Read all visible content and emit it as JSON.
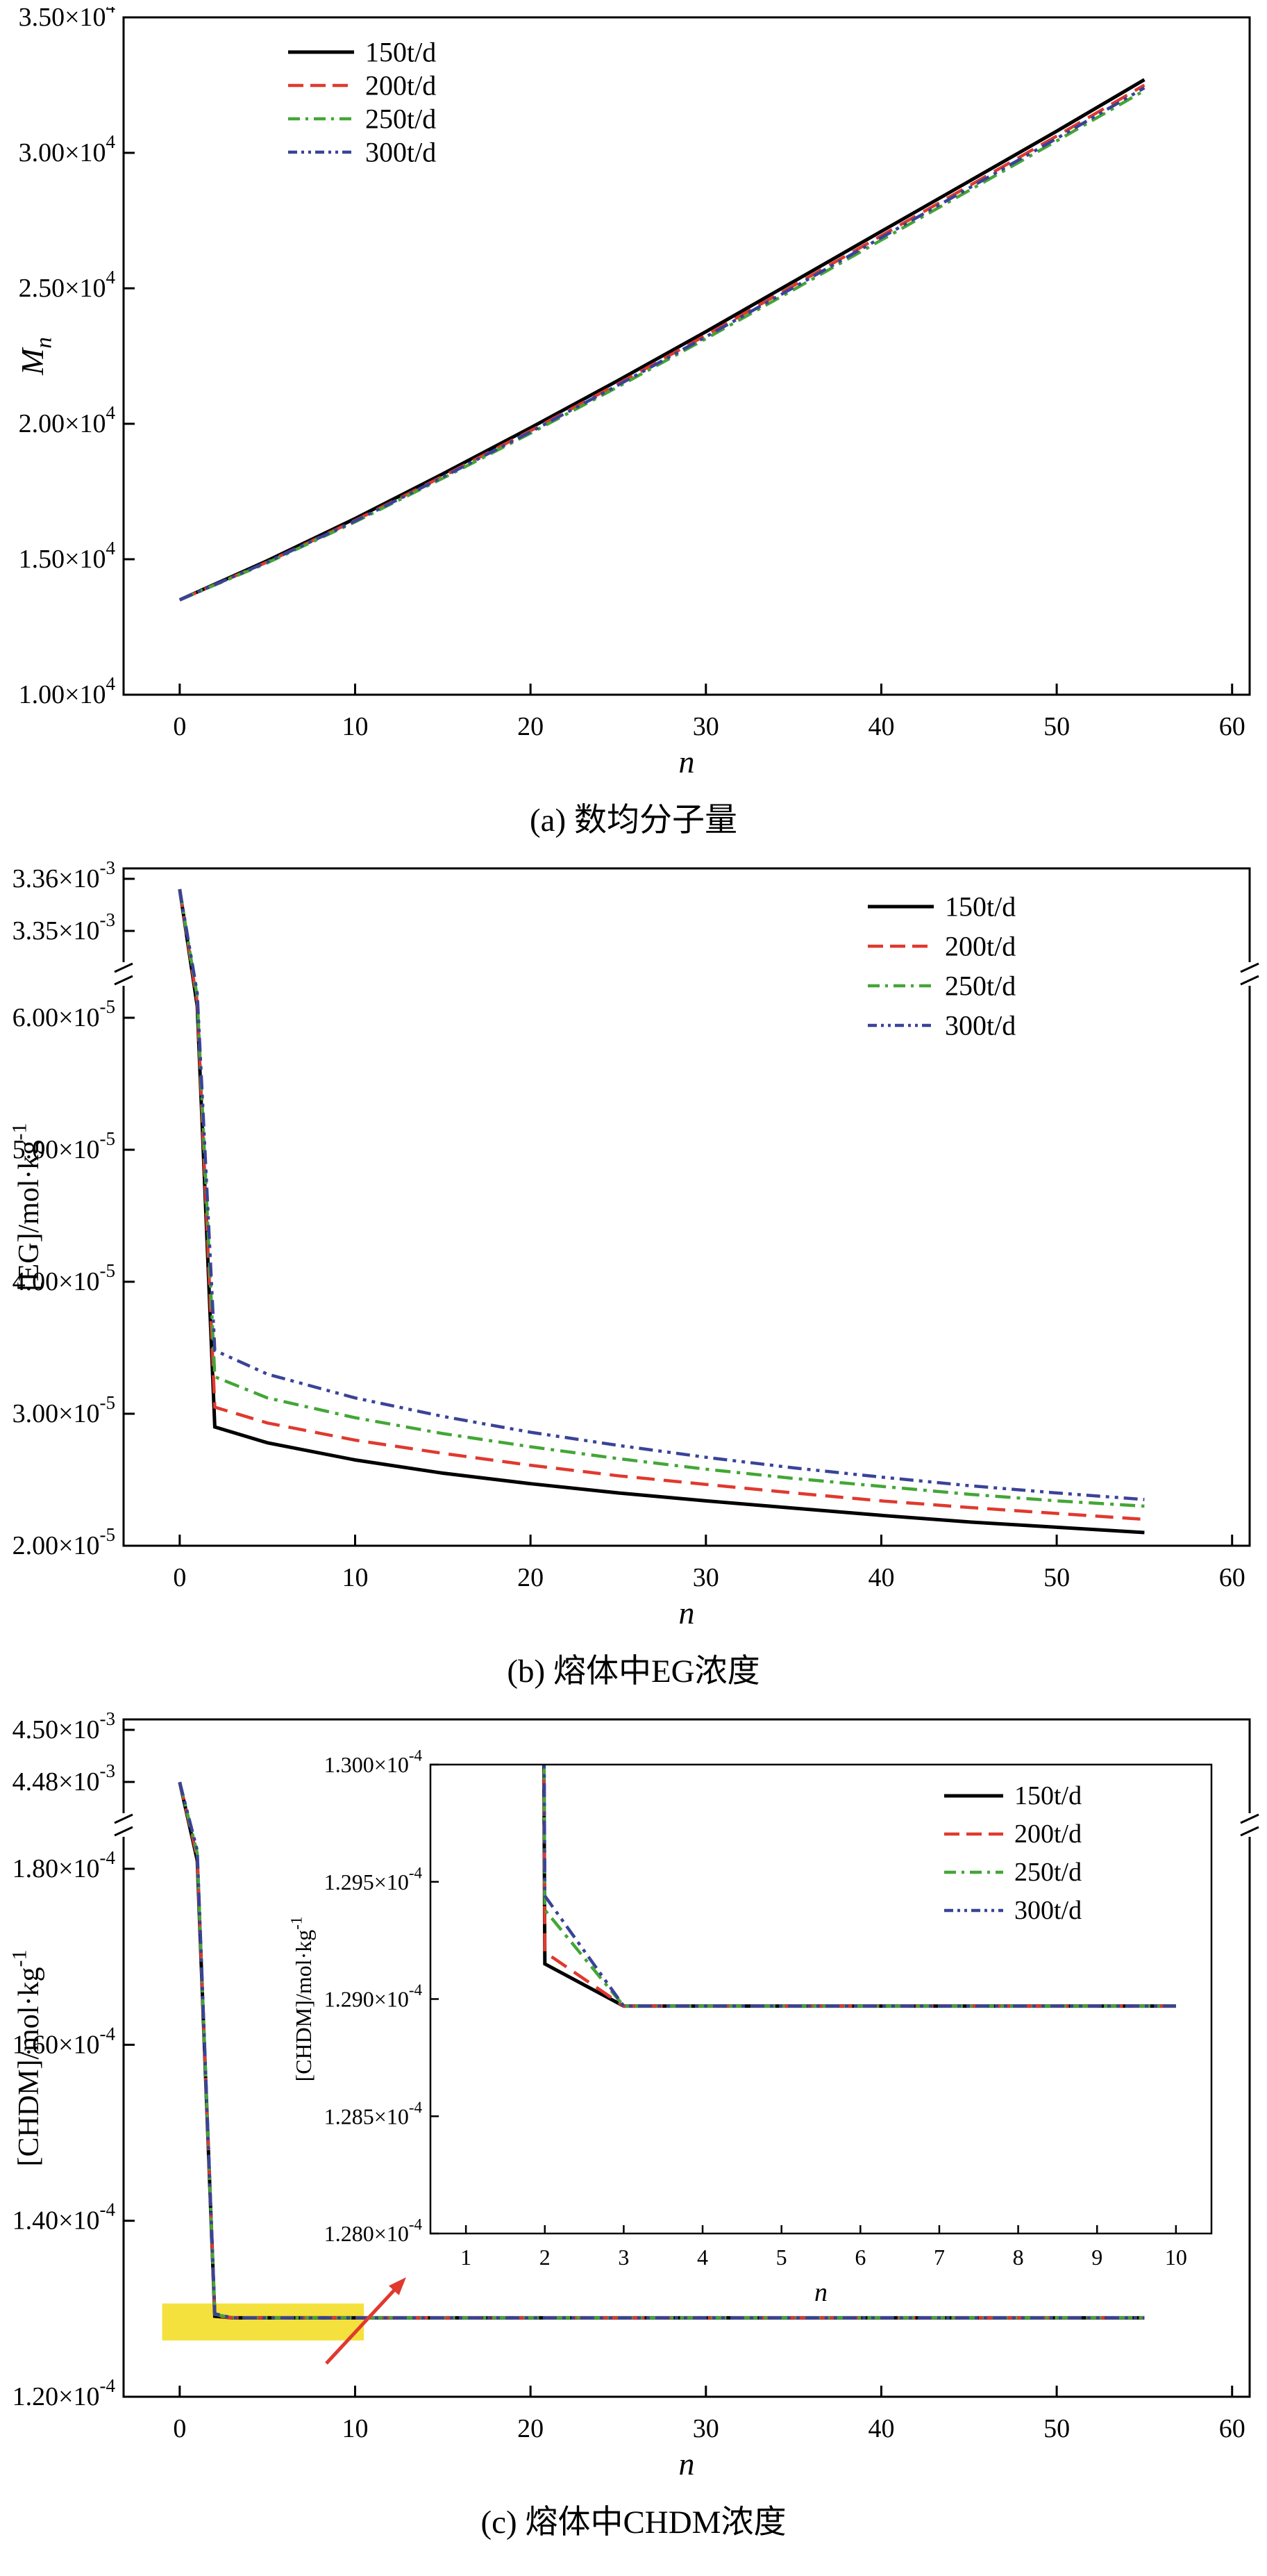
{
  "figure": {
    "background": "#ffffff",
    "accent_red": "#e0392e",
    "series_palette": {
      "150t/d": "#000000",
      "200t/d": "#e0392e",
      "250t/d": "#43a636",
      "300t/d": "#3a4397"
    }
  },
  "chart_data": [
    {
      "id": "a",
      "type": "line",
      "caption": "(a) 数均分子量",
      "xlabel": "n",
      "ylabel": "M_n",
      "legend_position": "top-left",
      "grid": false,
      "xlim": [
        -3.2,
        61.0
      ],
      "x_ticks": [
        0,
        10,
        20,
        30,
        40,
        50,
        60
      ],
      "ylim": [
        10000,
        35000
      ],
      "y_ticks": [
        {
          "v": 35000,
          "label": "3.50×10^4"
        },
        {
          "v": 30000,
          "label": "3.00×10^4"
        },
        {
          "v": 25000,
          "label": "2.50×10^4"
        },
        {
          "v": 20000,
          "label": "2.00×10^4"
        },
        {
          "v": 15000,
          "label": "1.50×10^4"
        },
        {
          "v": 10000,
          "label": "1.00×10^4"
        }
      ],
      "x": [
        0,
        5,
        10,
        15,
        20,
        25,
        30,
        35,
        40,
        45,
        50,
        55
      ],
      "series": [
        {
          "name": "150t/d",
          "color": "#000000",
          "style": "solid",
          "values": [
            13500,
            14950,
            16500,
            18150,
            19850,
            21600,
            23400,
            25250,
            27100,
            28950,
            30800,
            32700
          ]
        },
        {
          "name": "200t/d",
          "color": "#e0392e",
          "style": "dashed",
          "values": [
            13500,
            14900,
            16430,
            18060,
            19740,
            21480,
            23270,
            25100,
            26940,
            28780,
            30620,
            32500
          ]
        },
        {
          "name": "250t/d",
          "color": "#43a636",
          "style": "dashdot",
          "values": [
            13500,
            14870,
            16380,
            17990,
            19650,
            21370,
            23140,
            24950,
            26780,
            28610,
            30440,
            32300
          ]
        },
        {
          "name": "300t/d",
          "color": "#3a4397",
          "style": "dashdotdot",
          "values": [
            13500,
            14900,
            16410,
            18030,
            19700,
            21430,
            23210,
            25030,
            26870,
            28700,
            30530,
            32400
          ]
        }
      ]
    },
    {
      "id": "b",
      "type": "line",
      "caption": "(b) 熔体中EG浓度",
      "xlabel": "n",
      "ylabel": "[EG]/mol·kg^-1",
      "legend_position": "top-right",
      "grid": false,
      "axis_break": true,
      "xlim": [
        -3.2,
        61.0
      ],
      "x_ticks": [
        0,
        10,
        20,
        30,
        40,
        50,
        60
      ],
      "y_segments": [
        {
          "range": [
            0.00335,
            0.00336
          ],
          "ticks": [
            {
              "v": 0.00336,
              "label": "3.36×10^-3"
            },
            {
              "v": 0.00335,
              "label": "3.35×10^-3"
            }
          ]
        },
        {
          "range": [
            2e-05,
            6e-05
          ],
          "ticks": [
            {
              "v": 6e-05,
              "label": "6.00×10^-5"
            },
            {
              "v": 5e-05,
              "label": "5.00×10^-5"
            },
            {
              "v": 4e-05,
              "label": "4.00×10^-5"
            },
            {
              "v": 3e-05,
              "label": "3.00×10^-5"
            },
            {
              "v": 2e-05,
              "label": "2.00×10^-5"
            }
          ]
        }
      ],
      "x": [
        0,
        1,
        2,
        5,
        10,
        15,
        20,
        25,
        30,
        35,
        40,
        45,
        50,
        55
      ],
      "series": [
        {
          "name": "150t/d",
          "color": "#000000",
          "style": "solid",
          "values": [
            0.003358,
            0.0005,
            2.9e-05,
            2.78e-05,
            2.65e-05,
            2.55e-05,
            2.47e-05,
            2.4e-05,
            2.34e-05,
            2.285e-05,
            2.23e-05,
            2.18e-05,
            2.14e-05,
            2.1e-05
          ]
        },
        {
          "name": "200t/d",
          "color": "#e0392e",
          "style": "dashed",
          "values": [
            0.003358,
            0.00065,
            3.05e-05,
            2.93e-05,
            2.8e-05,
            2.7e-05,
            2.61e-05,
            2.53e-05,
            2.465e-05,
            2.4e-05,
            2.34e-05,
            2.29e-05,
            2.245e-05,
            2.2e-05
          ]
        },
        {
          "name": "250t/d",
          "color": "#43a636",
          "style": "dashdot",
          "values": [
            0.003358,
            0.00085,
            3.28e-05,
            3.12e-05,
            2.97e-05,
            2.85e-05,
            2.75e-05,
            2.66e-05,
            2.58e-05,
            2.51e-05,
            2.45e-05,
            2.39e-05,
            2.34e-05,
            2.3e-05
          ]
        },
        {
          "name": "300t/d",
          "color": "#3a4397",
          "style": "dashdotdot",
          "values": [
            0.003358,
            0.001,
            3.48e-05,
            3.3e-05,
            3.12e-05,
            2.98e-05,
            2.86e-05,
            2.76e-05,
            2.67e-05,
            2.59e-05,
            2.52e-05,
            2.455e-05,
            2.4e-05,
            2.35e-05
          ]
        }
      ]
    },
    {
      "id": "c",
      "type": "line",
      "caption": "(c) 熔体中CHDM浓度",
      "xlabel": "n",
      "ylabel": "[CHDM]/mol·kg^-1",
      "legend_position": "inset-top-right",
      "grid": false,
      "axis_break": true,
      "xlim": [
        -3.2,
        61.0
      ],
      "x_ticks": [
        0,
        10,
        20,
        30,
        40,
        50,
        60
      ],
      "y_segments": [
        {
          "range": [
            0.00448,
            0.0045
          ],
          "ticks": [
            {
              "v": 0.0045,
              "label": "4.50×10^-3"
            },
            {
              "v": 0.00448,
              "label": "4.48×10^-3"
            }
          ]
        },
        {
          "range": [
            0.00012,
            0.00018
          ],
          "ticks": [
            {
              "v": 0.00018,
              "label": "1.80×10^-4"
            },
            {
              "v": 0.00016,
              "label": "1.60×10^-4"
            },
            {
              "v": 0.00014,
              "label": "1.40×10^-4"
            },
            {
              "v": 0.00012,
              "label": "1.20×10^-4"
            }
          ]
        }
      ],
      "x": [
        0,
        1,
        2,
        3,
        5,
        10,
        15,
        20,
        25,
        30,
        35,
        40,
        45,
        50,
        55
      ],
      "series": [
        {
          "name": "150t/d",
          "color": "#000000",
          "style": "solid",
          "values": [
            0.00447,
            0.0006,
            0.00012915,
            0.00012897,
            0.00012897,
            0.00012897,
            0.00012897,
            0.00012897,
            0.00012897,
            0.00012897,
            0.00012897,
            0.00012897,
            0.00012897,
            0.00012897,
            0.00012897
          ]
        },
        {
          "name": "200t/d",
          "color": "#e0392e",
          "style": "dashed",
          "values": [
            0.00447,
            0.00075,
            0.0001292,
            0.00012897,
            0.00012897,
            0.00012897,
            0.00012897,
            0.00012897,
            0.00012897,
            0.00012897,
            0.00012897,
            0.00012897,
            0.00012897,
            0.00012897,
            0.00012897
          ]
        },
        {
          "name": "250t/d",
          "color": "#43a636",
          "style": "dashdot",
          "values": [
            0.00447,
            0.00095,
            0.00012938,
            0.00012897,
            0.00012897,
            0.00012897,
            0.00012897,
            0.00012897,
            0.00012897,
            0.00012897,
            0.00012897,
            0.00012897,
            0.00012897,
            0.00012897,
            0.00012897
          ]
        },
        {
          "name": "300t/d",
          "color": "#3a4397",
          "style": "dashdotdot",
          "values": [
            0.00447,
            0.0011,
            0.00012944,
            0.00012897,
            0.00012897,
            0.00012897,
            0.00012897,
            0.00012897,
            0.00012897,
            0.00012897,
            0.00012897,
            0.00012897,
            0.00012897,
            0.00012897,
            0.00012897
          ]
        }
      ],
      "annotations": {
        "highlight": {
          "x0": -1.0,
          "x1": 10.5,
          "y0": 0.0001264,
          "y1": 0.0001306,
          "color": "#f5e13d"
        },
        "arrow": {
          "color": "#e0392e"
        }
      },
      "inset": {
        "type": "line",
        "xlabel": "n",
        "ylabel": "[CHDM]/mol·kg^-1",
        "legend_position": "top-right",
        "xlim": [
          0.55,
          10.45
        ],
        "x_ticks": [
          1,
          2,
          3,
          4,
          5,
          6,
          7,
          8,
          9,
          10
        ],
        "ylim": [
          0.000128,
          0.00013
        ],
        "y_ticks": [
          {
            "v": 0.00013,
            "label": "1.300×10^-4"
          },
          {
            "v": 0.0001295,
            "label": "1.295×10^-4"
          },
          {
            "v": 0.000129,
            "label": "1.290×10^-4"
          },
          {
            "v": 0.0001285,
            "label": "1.285×10^-4"
          },
          {
            "v": 0.000128,
            "label": "1.280×10^-4"
          }
        ],
        "x": [
          1,
          2,
          3,
          4,
          5,
          6,
          7,
          8,
          9,
          10
        ],
        "series": [
          {
            "name": "150t/d",
            "color": "#000000",
            "style": "solid",
            "values": [
              0.0002,
              0.00012915,
              0.00012897,
              0.00012897,
              0.00012897,
              0.00012897,
              0.00012897,
              0.00012897,
              0.00012897,
              0.00012897
            ]
          },
          {
            "name": "200t/d",
            "color": "#e0392e",
            "style": "dashed",
            "values": [
              0.0002,
              0.0001292,
              0.00012897,
              0.00012897,
              0.00012897,
              0.00012897,
              0.00012897,
              0.00012897,
              0.00012897,
              0.00012897
            ]
          },
          {
            "name": "250t/d",
            "color": "#43a636",
            "style": "dashdot",
            "values": [
              0.0002,
              0.00012938,
              0.00012897,
              0.00012897,
              0.00012897,
              0.00012897,
              0.00012897,
              0.00012897,
              0.00012897,
              0.00012897
            ]
          },
          {
            "name": "300t/d",
            "color": "#3a4397",
            "style": "dashdotdot",
            "values": [
              0.0002,
              0.00012944,
              0.00012897,
              0.00012897,
              0.00012897,
              0.00012897,
              0.00012897,
              0.00012897,
              0.00012897,
              0.00012897
            ]
          }
        ]
      }
    }
  ]
}
